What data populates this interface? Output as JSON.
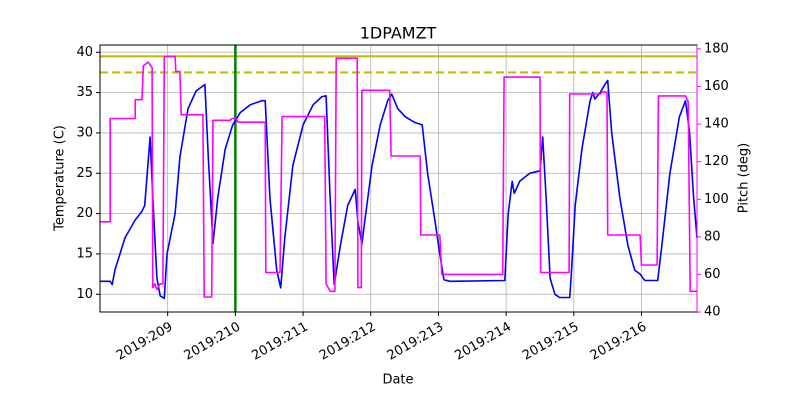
{
  "chart_data": {
    "type": "line",
    "title": "1DPAMZT",
    "xlabel": "Date",
    "ylabel": "Temperature (C)",
    "y2label": "Pitch (deg)",
    "y2color": "#ff00ff",
    "grid": true,
    "xlim": [
      208.0,
      216.82
    ],
    "xticks": [
      {
        "value": 209,
        "label": "2019:209"
      },
      {
        "value": 210,
        "label": "2019:210"
      },
      {
        "value": 211,
        "label": "2019:211"
      },
      {
        "value": 212,
        "label": "2019:212"
      },
      {
        "value": 213,
        "label": "2019:213"
      },
      {
        "value": 214,
        "label": "2019:214"
      },
      {
        "value": 215,
        "label": "2019:215"
      },
      {
        "value": 216,
        "label": "2019:216"
      }
    ],
    "ylim": [
      7.8,
      40.9
    ],
    "yticks": [
      10,
      15,
      20,
      25,
      30,
      35,
      40
    ],
    "y2lim": [
      40,
      182.1
    ],
    "y2ticks": [
      40,
      60,
      80,
      100,
      120,
      140,
      160,
      180
    ],
    "hlines": [
      {
        "value": 39.5,
        "color": "#bfbf00",
        "style": "solid"
      },
      {
        "value": 37.5,
        "color": "#bfbf00",
        "style": "dashed"
      }
    ],
    "vlines": [
      {
        "value": 210.0,
        "color": "#008000"
      }
    ],
    "series": [
      {
        "name": "Temperature",
        "color": "#0000ff",
        "axis": "y",
        "x": [
          208.0,
          208.15,
          208.18,
          208.22,
          208.37,
          208.52,
          208.62,
          208.66,
          208.74,
          208.78,
          208.84,
          208.89,
          208.95,
          208.99,
          209.11,
          209.18,
          209.3,
          209.42,
          209.55,
          209.6,
          209.67,
          209.74,
          209.85,
          209.96,
          210.07,
          210.22,
          210.39,
          210.44,
          210.51,
          210.61,
          210.67,
          210.73,
          210.85,
          211.0,
          211.15,
          211.28,
          211.34,
          211.4,
          211.46,
          211.55,
          211.66,
          211.77,
          211.81,
          211.87,
          211.91,
          212.02,
          212.14,
          212.25,
          212.31,
          212.4,
          212.51,
          212.65,
          212.76,
          212.84,
          212.95,
          213.02,
          213.08,
          213.17,
          213.98,
          214.03,
          214.09,
          214.12,
          214.2,
          214.35,
          214.5,
          214.54,
          214.59,
          214.65,
          214.72,
          214.79,
          214.94,
          214.96,
          215.02,
          215.12,
          215.24,
          215.28,
          215.31,
          215.39,
          215.46,
          215.5,
          215.56,
          215.68,
          215.8,
          215.9,
          215.98,
          216.02,
          216.05,
          216.24,
          216.3,
          216.42,
          216.56,
          216.65,
          216.71,
          216.77,
          216.82
        ],
        "values": [
          11.6,
          11.6,
          11.2,
          13,
          17,
          19.2,
          20.3,
          21,
          29.5,
          22,
          12,
          9.8,
          9.5,
          15,
          20,
          27,
          33,
          35.2,
          36,
          27,
          16.3,
          22,
          28,
          31,
          32.5,
          33.5,
          34,
          34,
          22,
          13,
          10.8,
          17,
          26,
          31,
          33.5,
          34.5,
          34.6,
          22,
          11.2,
          16,
          21,
          23,
          19,
          16.2,
          19,
          26,
          31,
          34,
          34.8,
          33,
          32,
          31.3,
          31,
          25,
          19,
          15,
          11.8,
          11.6,
          11.7,
          20,
          24,
          22.5,
          24,
          25,
          25.3,
          29.5,
          22,
          12,
          10,
          9.6,
          9.6,
          12,
          21,
          28,
          34,
          35,
          34.2,
          35,
          36,
          36.5,
          30,
          22,
          16,
          13,
          12.5,
          12,
          11.7,
          11.7,
          16,
          25,
          32,
          34,
          30,
          22,
          17
        ]
      },
      {
        "name": "Pitch",
        "color": "#ff00ff",
        "axis": "y2",
        "x": [
          208.0,
          208.15,
          208.15,
          208.52,
          208.52,
          208.62,
          208.64,
          208.71,
          208.77,
          208.78,
          208.81,
          208.84,
          208.89,
          208.93,
          208.95,
          209.11,
          209.12,
          209.18,
          209.2,
          209.52,
          209.54,
          209.65,
          209.67,
          209.92,
          209.95,
          210.01,
          210.04,
          210.44,
          210.45,
          210.66,
          210.69,
          211.32,
          211.34,
          211.4,
          211.47,
          211.49,
          211.8,
          211.81,
          211.86,
          211.87,
          212.28,
          212.3,
          212.73,
          212.74,
          213.02,
          213.05,
          213.95,
          213.97,
          214.5,
          214.51,
          214.93,
          214.94,
          215.39,
          215.42,
          215.49,
          215.5,
          215.98,
          216.0,
          216.23,
          216.25,
          216.65,
          216.69,
          216.72,
          216.82
        ],
        "values": [
          88,
          88,
          143,
          143,
          153,
          153,
          171,
          173,
          170,
          53,
          55,
          52,
          55,
          55,
          176,
          176,
          168,
          168,
          145,
          145,
          48,
          48,
          142,
          142,
          143,
          143,
          141,
          141,
          61,
          61,
          144,
          144,
          55,
          51,
          51,
          175,
          175,
          53,
          53,
          158,
          158,
          123,
          123,
          81,
          81,
          60,
          60,
          165,
          165,
          61,
          61,
          156,
          156,
          157,
          157,
          81,
          81,
          65,
          65,
          155,
          155,
          152,
          51,
          51
        ]
      }
    ]
  }
}
